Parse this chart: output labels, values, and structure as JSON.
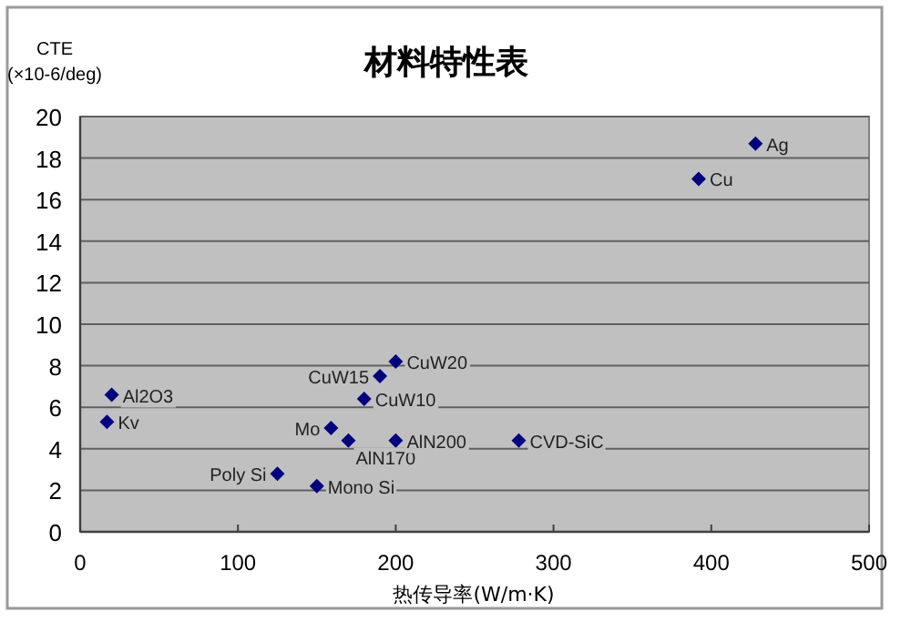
{
  "chart_data": {
    "type": "scatter",
    "title": "材料特性表",
    "xlabel": "热传导率(W/m·K)",
    "ylabel": "CTE (×10-6/deg)",
    "x": [
      428,
      392,
      20,
      17,
      200,
      190,
      180,
      159,
      170,
      200,
      125,
      150,
      278
    ],
    "values": [
      18.7,
      17.0,
      6.6,
      5.3,
      8.2,
      7.5,
      6.4,
      5.0,
      4.4,
      4.4,
      2.8,
      2.2,
      4.4
    ],
    "color": "#000080",
    "marker": "diamond",
    "grid": "y",
    "xlim": [
      0,
      500
    ],
    "xticks": [
      0,
      100,
      200,
      300,
      400,
      500
    ],
    "ylim": [
      0,
      20
    ],
    "yticks": [
      0,
      2,
      4,
      6,
      8,
      10,
      12,
      14,
      16,
      18,
      20
    ],
    "annotations": [
      {
        "text": "Ag",
        "x": 428,
        "y": 18.7
      },
      {
        "text": "Cu",
        "x": 392,
        "y": 17.0
      },
      {
        "text": "Al2O3",
        "x": 20,
        "y": 6.6
      },
      {
        "text": "Kv",
        "x": 17,
        "y": 5.3
      },
      {
        "text": "CuW20",
        "x": 200,
        "y": 8.2
      },
      {
        "text": "CuW15",
        "x": 190,
        "y": 7.5
      },
      {
        "text": "CuW10",
        "x": 180,
        "y": 6.4
      },
      {
        "text": "Mo",
        "x": 159,
        "y": 5.0
      },
      {
        "text": "AlN170",
        "x": 170,
        "y": 4.4
      },
      {
        "text": "AlN200",
        "x": 200,
        "y": 4.4
      },
      {
        "text": "Poly Si",
        "x": 125,
        "y": 2.8
      },
      {
        "text": "Mono Si",
        "x": 150,
        "y": 2.2
      },
      {
        "text": "CVD-SiC",
        "x": 278,
        "y": 4.4
      }
    ]
  }
}
